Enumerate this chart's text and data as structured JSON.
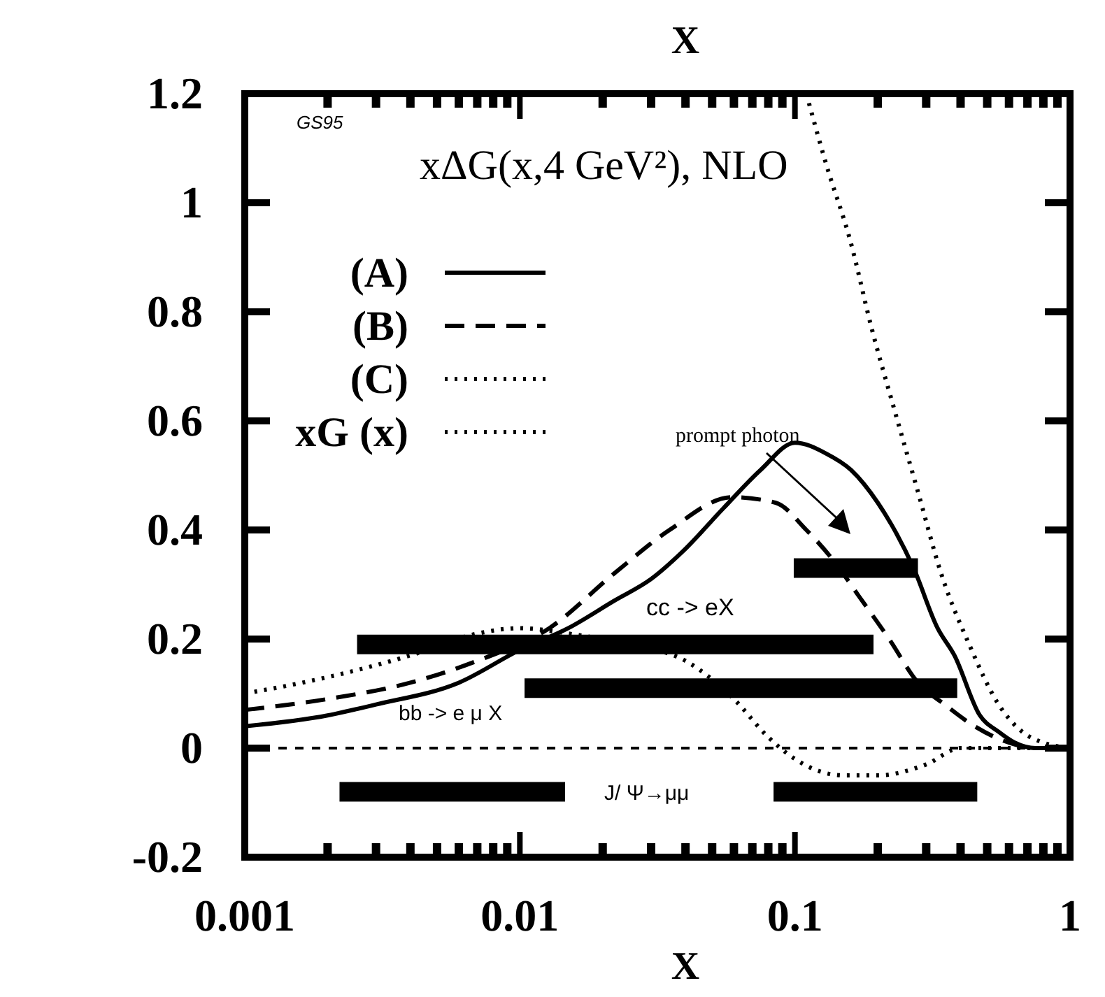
{
  "chart_data": {
    "type": "line",
    "title": "X",
    "xlabel": "X",
    "legend_title": "xΔG(x,4 GeV²), NLO",
    "log": "x",
    "legend": "top left",
    "xlim": [
      0.001,
      1
    ],
    "ylim": [
      -0.2,
      1.2
    ],
    "xticks": [
      0.001,
      {
        "value": 0.002,
        "label": null
      },
      {
        "value": 0.003,
        "label": null
      },
      {
        "value": 0.004,
        "label": null
      },
      {
        "value": 0.005,
        "label": null
      },
      {
        "value": 0.006,
        "label": null
      },
      {
        "value": 0.007,
        "label": null
      },
      {
        "value": 0.008,
        "label": null
      },
      {
        "value": 0.009,
        "label": null
      },
      0.01,
      {
        "value": 0.02,
        "label": null
      },
      {
        "value": 0.03,
        "label": null
      },
      {
        "value": 0.04,
        "label": null
      },
      {
        "value": 0.05,
        "label": null
      },
      {
        "value": 0.06,
        "label": null
      },
      {
        "value": 0.07,
        "label": null
      },
      {
        "value": 0.08,
        "label": null
      },
      {
        "value": 0.09,
        "label": null
      },
      0.1,
      {
        "value": 0.2,
        "label": null
      },
      {
        "value": 0.3,
        "label": null
      },
      {
        "value": 0.4,
        "label": null
      },
      {
        "value": 0.5,
        "label": null
      },
      {
        "value": 0.6,
        "label": null
      },
      {
        "value": 0.7,
        "label": null
      },
      {
        "value": 0.8,
        "label": null
      },
      {
        "value": 0.9,
        "label": null
      },
      1
    ],
    "yticks": [
      -0.2,
      0,
      0.2,
      0.4,
      0.6,
      0.8,
      1,
      1.2
    ],
    "ref_lines": [
      {
        "axis": "y",
        "value": 0,
        "line_style": "dotted",
        "color": "#000000"
      }
    ],
    "series": [
      {
        "name": "(A)",
        "color": "#000000",
        "line_style": "solid",
        "x": [
          0.001,
          0.002,
          0.003,
          0.006,
          0.01,
          0.015,
          0.022,
          0.03,
          0.039,
          0.055,
          0.075,
          0.1,
          0.13,
          0.16,
          0.2,
          0.27,
          0.33,
          0.38,
          0.47,
          0.55,
          0.63,
          0.75,
          1
        ],
        "values": [
          0.04,
          0.06,
          0.08,
          0.12,
          0.18,
          0.22,
          0.27,
          0.31,
          0.36,
          0.44,
          0.51,
          0.56,
          0.54,
          0.51,
          0.45,
          0.33,
          0.22,
          0.17,
          0.06,
          0.03,
          0.01,
          0,
          0
        ]
      },
      {
        "name": "(B)",
        "color": "#000000",
        "line_style": "dashed",
        "x": [
          0.001,
          0.002,
          0.004,
          0.007,
          0.0128,
          0.022,
          0.035,
          0.059,
          0.085,
          0.11,
          0.14,
          0.17,
          0.22,
          0.28,
          0.35,
          0.45,
          0.6,
          0.75,
          1
        ],
        "values": [
          0.07,
          0.09,
          0.12,
          0.16,
          0.22,
          0.32,
          0.4,
          0.46,
          0.45,
          0.4,
          0.34,
          0.28,
          0.2,
          0.12,
          0.08,
          0.04,
          0.01,
          0,
          0
        ]
      },
      {
        "name": "(C)",
        "color": "#000000",
        "line_style": "dotted",
        "x": [
          0.001,
          0.002,
          0.004,
          0.007,
          0.01,
          0.015,
          0.025,
          0.04,
          0.06,
          0.08,
          0.1,
          0.15,
          0.2,
          0.3,
          0.4,
          0.6,
          1
        ],
        "values": [
          0.1,
          0.13,
          0.17,
          0.21,
          0.22,
          0.21,
          0.19,
          0.16,
          0.09,
          0.02,
          -0.02,
          -0.05,
          -0.05,
          -0.03,
          0,
          0,
          0
        ]
      },
      {
        "name": "xG (x)",
        "color": "#000000",
        "line_style": "dotted",
        "x": [
          0.11,
          0.13,
          0.159,
          0.19,
          0.23,
          0.28,
          0.34,
          0.43,
          0.55,
          0.67,
          0.8,
          1
        ],
        "values": [
          1.2,
          1.07,
          0.93,
          0.77,
          0.62,
          0.47,
          0.32,
          0.19,
          0.08,
          0.03,
          0.01,
          0
        ]
      },
      {
        "color": "#000000",
        "line_style": "solid",
        "x": [
          0.099,
          0.28
        ],
        "values": [
          0.33,
          0.33
        ]
      },
      {
        "color": "#000000",
        "line_style": "solid",
        "x": [
          0.00256,
          0.193
        ],
        "values": [
          0.19,
          0.19
        ]
      },
      {
        "color": "#000000",
        "line_style": "solid",
        "x": [
          0.0104,
          0.389
        ],
        "values": [
          0.11,
          0.11
        ]
      },
      {
        "color": "#000000",
        "line_style": "solid",
        "x": [
          0.00221,
          0.0146
        ],
        "values": [
          -0.08,
          -0.08
        ]
      },
      {
        "color": "#000000",
        "line_style": "solid",
        "x": [
          0.0836,
          0.46
        ],
        "values": [
          -0.08,
          -0.08
        ]
      }
    ],
    "annotations": [
      "GS95",
      "prompt photon",
      "cc  -> eX",
      "bb  -> e  μ X",
      "J/ Ψ→μμ"
    ]
  }
}
